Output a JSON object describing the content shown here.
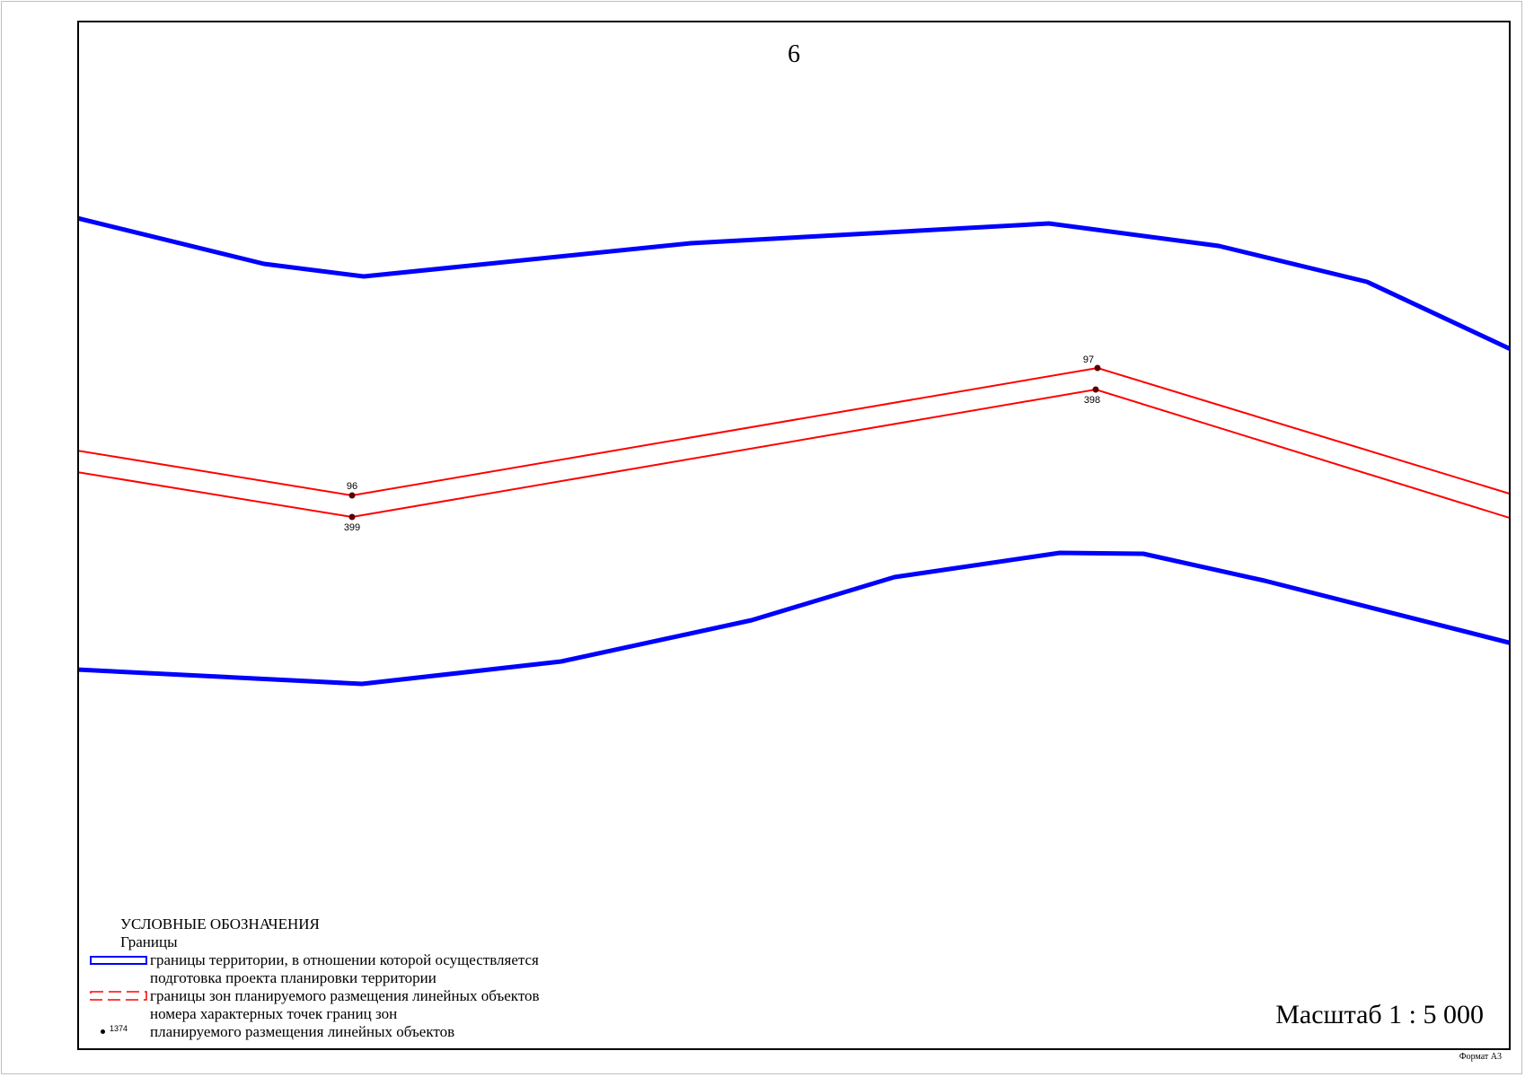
{
  "sheet_number": "6",
  "scale_label": "Масштаб 1 : 5 000",
  "format_label": "Формат А3",
  "colors": {
    "territory_boundary": "#0000ff",
    "zone_boundary": "#ff0000",
    "point": "#5a0000",
    "frame": "#000000"
  },
  "points": {
    "p96": "96",
    "p399": "399",
    "p97": "97",
    "p398": "398"
  },
  "legend": {
    "title": "УСЛОВНЫЕ ОБОЗНАЧЕНИЯ",
    "subtitle": "Границы",
    "items": [
      {
        "symbol": "blue-solid-rectangle",
        "line1": "границы территории, в отношении которой осуществляется",
        "line2": "подготовка проекта планировки территории"
      },
      {
        "symbol": "red-dashed-rectangle",
        "line1": "границы зон планируемого размещения линейных объектов"
      },
      {
        "symbol": "point-dot",
        "sample_number": "1374",
        "line1": "номера характерных точек границ зон",
        "line2": "планируемого размещения линейных объектов"
      }
    ]
  }
}
